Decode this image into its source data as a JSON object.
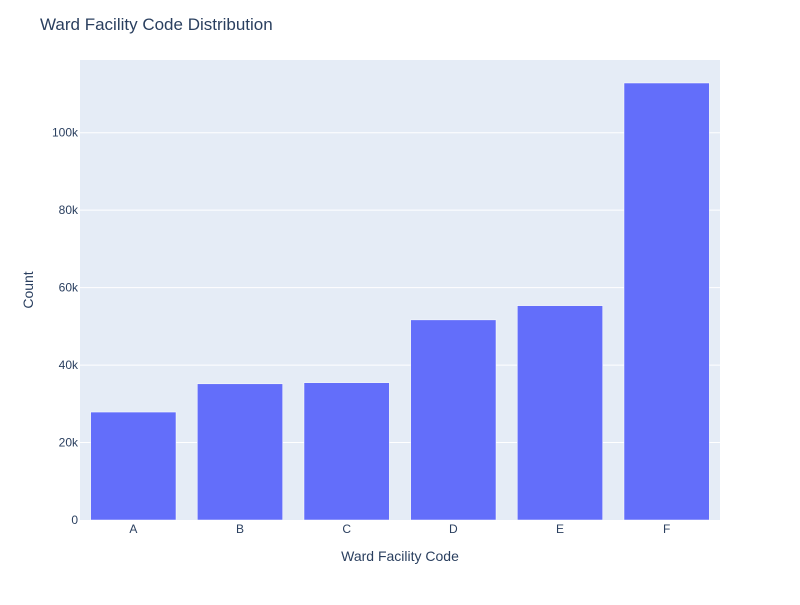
{
  "chart_data": {
    "type": "bar",
    "title": "Ward Facility Code Distribution",
    "xlabel": "Ward Facility Code",
    "ylabel": "Count",
    "categories": [
      "A",
      "B",
      "C",
      "D",
      "E",
      "F"
    ],
    "values": [
      27875,
      35167,
      35459,
      51676,
      55347,
      112841
    ],
    "ylim": [
      0,
      118780
    ],
    "yticks": [
      0,
      20000,
      40000,
      60000,
      80000,
      100000
    ],
    "ytick_labels": [
      "0",
      "20k",
      "40k",
      "60k",
      "80k",
      "100k"
    ],
    "grid": true,
    "legend": "none",
    "colors": {
      "bar": "#636efa",
      "plot_background": "#e5ecf6",
      "grid": "#ffffff",
      "text": "#2a3f5f"
    }
  }
}
